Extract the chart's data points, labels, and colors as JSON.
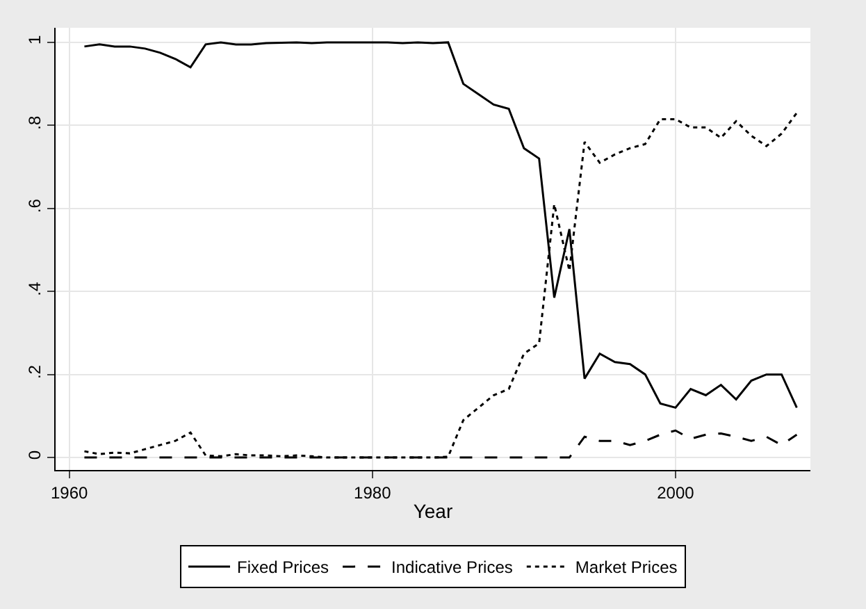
{
  "chart_data": {
    "type": "line",
    "xlabel": "Year",
    "x": [
      1961,
      1962,
      1963,
      1964,
      1965,
      1966,
      1967,
      1968,
      1969,
      1970,
      1971,
      1972,
      1973,
      1974,
      1975,
      1976,
      1977,
      1978,
      1979,
      1980,
      1981,
      1982,
      1983,
      1984,
      1985,
      1986,
      1987,
      1988,
      1989,
      1990,
      1991,
      1992,
      1993,
      1994,
      1995,
      1996,
      1997,
      1998,
      1999,
      2000,
      2001,
      2002,
      2003,
      2004,
      2005,
      2006,
      2007,
      2008
    ],
    "series": [
      {
        "name": "Fixed Prices",
        "color": "#000000",
        "line_style": "solid",
        "values": [
          0.99,
          0.995,
          0.99,
          0.99,
          0.985,
          0.975,
          0.96,
          0.94,
          0.995,
          1.0,
          0.995,
          0.995,
          0.998,
          0.999,
          1.0,
          0.998,
          1.0,
          1.0,
          1.0,
          1.0,
          1.0,
          0.998,
          1.0,
          0.998,
          1.0,
          0.9,
          0.875,
          0.85,
          0.84,
          0.745,
          0.72,
          0.385,
          0.55,
          0.19,
          0.25,
          0.23,
          0.225,
          0.2,
          0.13,
          0.12,
          0.165,
          0.15,
          0.175,
          0.14,
          0.185,
          0.2,
          0.2,
          0.12
        ]
      },
      {
        "name": "Indicative Prices",
        "color": "#000000",
        "line_style": "dashed",
        "values": [
          0,
          0,
          0,
          0,
          0,
          0,
          0,
          0,
          0,
          0,
          0,
          0,
          0,
          0,
          0,
          0,
          0,
          0,
          0,
          0,
          0,
          0,
          0,
          0,
          0,
          0,
          0,
          0,
          0,
          0,
          0,
          0,
          0,
          0.05,
          0.04,
          0.04,
          0.03,
          0.04,
          0.055,
          0.065,
          0.045,
          0.055,
          0.058,
          0.05,
          0.04,
          0.05,
          0.03,
          0.055
        ]
      },
      {
        "name": "Market Prices",
        "color": "#000000",
        "line_style": "dotted",
        "values": [
          0.015,
          0.008,
          0.012,
          0.01,
          0.02,
          0.03,
          0.04,
          0.06,
          0.005,
          0.003,
          0.008,
          0.005,
          0.005,
          0.003,
          0.005,
          0.003,
          0,
          0,
          0,
          0,
          0,
          0,
          0,
          0,
          0.002,
          0.09,
          0.12,
          0.15,
          0.165,
          0.25,
          0.275,
          0.61,
          0.45,
          0.76,
          0.71,
          0.73,
          0.745,
          0.755,
          0.815,
          0.815,
          0.795,
          0.795,
          0.77,
          0.81,
          0.775,
          0.75,
          0.78,
          0.83
        ]
      }
    ],
    "xlim": [
      1959.1,
      2008.9
    ],
    "xticks": [
      1960,
      1980,
      2000
    ],
    "ylim": [
      -0.03,
      1.035
    ],
    "yticks": [
      {
        "value": 0,
        "label": "0"
      },
      {
        "value": 0.2,
        "label": ".2"
      },
      {
        "value": 0.4,
        "label": ".4"
      },
      {
        "value": 0.6,
        "label": ".6"
      },
      {
        "value": 0.8,
        "label": ".8"
      },
      {
        "value": 1,
        "label": "1"
      }
    ],
    "grid": true,
    "legend": "bottom"
  }
}
